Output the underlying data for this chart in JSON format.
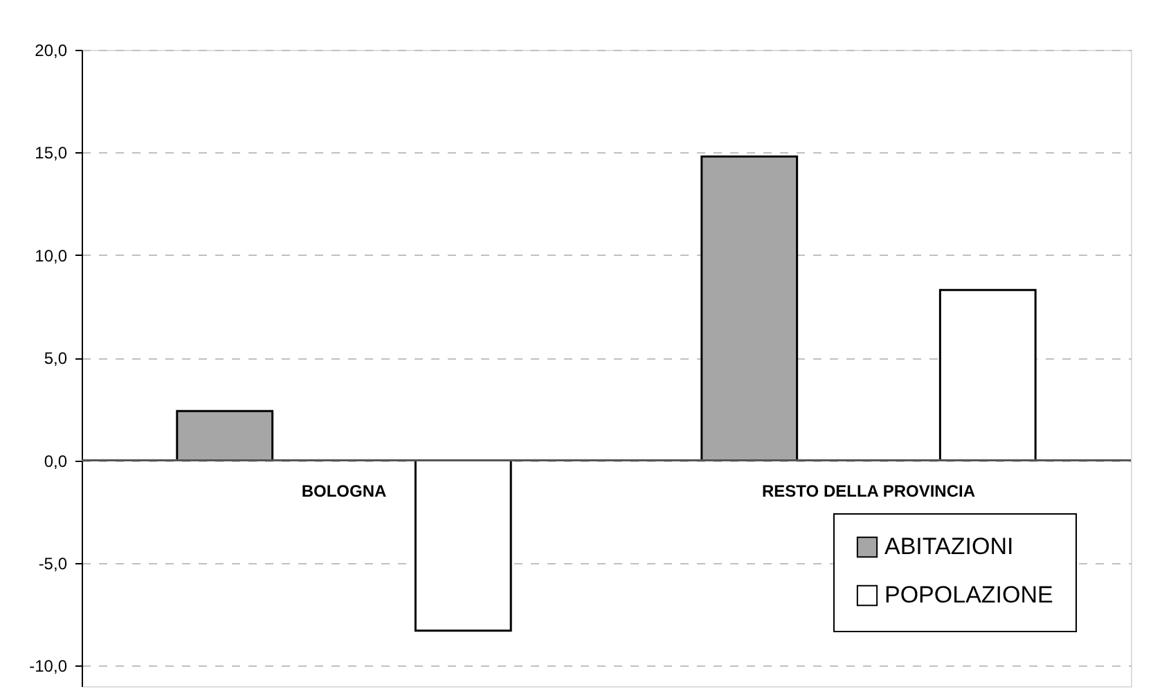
{
  "chart_data": {
    "type": "bar",
    "categories": [
      "BOLOGNA",
      "RESTO DELLA PROVINCIA"
    ],
    "series": [
      {
        "name": "ABITAZIONI",
        "color": "#a6a6a6",
        "values": [
          2.4,
          14.8
        ]
      },
      {
        "name": "POPOLAZIONE",
        "color": "#ffffff",
        "values": [
          -8.3,
          8.3
        ]
      }
    ],
    "ylim": [
      -11.0,
      20.0
    ],
    "yticks": [
      {
        "value": -10,
        "label": "-10,0"
      },
      {
        "value": -5,
        "label": "-5,0"
      },
      {
        "value": 0,
        "label": "0,0"
      },
      {
        "value": 5,
        "label": "5,0"
      },
      {
        "value": 10,
        "label": "10,0"
      },
      {
        "value": 15,
        "label": "15,0"
      },
      {
        "value": 20,
        "label": "20,0"
      }
    ],
    "grid": "y",
    "legend": "bottom right"
  }
}
